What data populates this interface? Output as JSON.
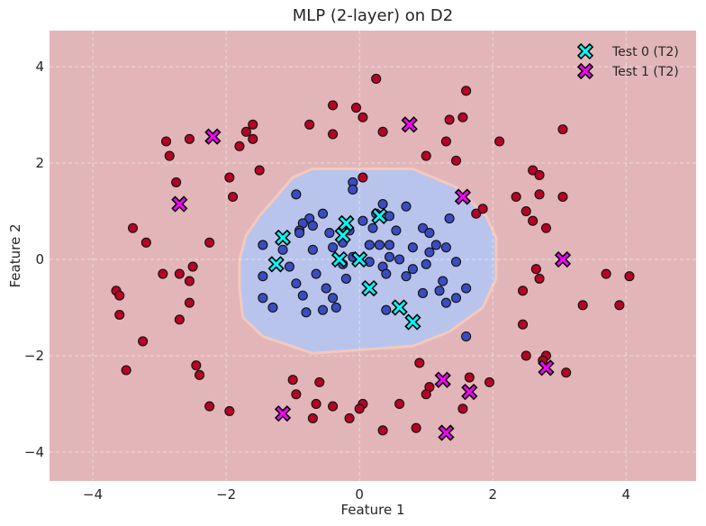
{
  "chart_data": {
    "type": "scatter",
    "title": "MLP (2-layer) on D2",
    "xlabel": "Feature 1",
    "ylabel": "Feature 2",
    "xlim": [
      -4.65,
      5.05
    ],
    "ylim": [
      -4.6,
      4.75
    ],
    "xticks": [
      -4,
      -2,
      0,
      2,
      4
    ],
    "yticks": [
      -4,
      -2,
      0,
      2,
      4
    ],
    "grid": true,
    "legend_position": "top-right",
    "colors": {
      "outer_region": "#e2b6b8",
      "inner_region": "#b8c4ec",
      "inner_boundary": "#f3c9be",
      "class0": "#3b4cc0",
      "class1": "#b40426",
      "test0": "#00ffff",
      "test1": "#ff00ff"
    },
    "decision_region_class0": [
      [
        -0.7,
        1.88
      ],
      [
        0.8,
        1.88
      ],
      [
        1.45,
        1.5
      ],
      [
        1.9,
        0.9
      ],
      [
        2.05,
        0.45
      ],
      [
        2.05,
        -0.4
      ],
      [
        1.85,
        -1.0
      ],
      [
        1.35,
        -1.5
      ],
      [
        0.8,
        -1.8
      ],
      [
        -0.7,
        -1.95
      ],
      [
        -1.45,
        -1.6
      ],
      [
        -1.75,
        -1.2
      ],
      [
        -1.8,
        -0.6
      ],
      [
        -1.8,
        0.0
      ],
      [
        -1.7,
        0.5
      ],
      [
        -1.5,
        0.9
      ],
      [
        -1.25,
        1.3
      ],
      [
        -1.0,
        1.7
      ]
    ],
    "series": [
      {
        "name": "",
        "class": 0,
        "kind": "train",
        "points": [
          [
            -0.95,
            1.35
          ],
          [
            -0.1,
            1.6
          ],
          [
            -0.1,
            1.45
          ],
          [
            0.7,
            1.1
          ],
          [
            0.25,
            0.95
          ],
          [
            0.45,
            0.9
          ],
          [
            -0.75,
            0.85
          ],
          [
            -0.85,
            0.75
          ],
          [
            -0.7,
            0.7
          ],
          [
            0.05,
            0.8
          ],
          [
            -0.45,
            0.55
          ],
          [
            -0.9,
            0.6
          ],
          [
            -0.15,
            0.6
          ],
          [
            0.55,
            0.6
          ],
          [
            0.95,
            0.65
          ],
          [
            1.35,
            0.85
          ],
          [
            1.05,
            0.55
          ],
          [
            -1.45,
            0.3
          ],
          [
            -1.15,
            0.2
          ],
          [
            -0.7,
            0.2
          ],
          [
            -0.4,
            0.25
          ],
          [
            0.15,
            0.3
          ],
          [
            0.3,
            0.3
          ],
          [
            0.45,
            0.3
          ],
          [
            0.8,
            0.25
          ],
          [
            1.15,
            0.3
          ],
          [
            1.3,
            0.25
          ],
          [
            -0.1,
            0.05
          ],
          [
            0.15,
            -0.05
          ],
          [
            0.45,
            0.05
          ],
          [
            -0.25,
            -0.1
          ],
          [
            0.35,
            -0.15
          ],
          [
            0.8,
            -0.2
          ],
          [
            1.0,
            -0.1
          ],
          [
            1.45,
            -0.05
          ],
          [
            -0.65,
            -0.3
          ],
          [
            -0.95,
            -0.5
          ],
          [
            -0.2,
            -0.4
          ],
          [
            0.4,
            -0.3
          ],
          [
            0.7,
            -0.35
          ],
          [
            1.25,
            -0.45
          ],
          [
            -1.45,
            -0.35
          ],
          [
            -0.5,
            -0.6
          ],
          [
            -1.45,
            -0.8
          ],
          [
            -0.85,
            -0.75
          ],
          [
            -0.4,
            -0.8
          ],
          [
            1.2,
            -0.65
          ],
          [
            1.6,
            -0.6
          ],
          [
            -1.3,
            -1.0
          ],
          [
            -0.55,
            -1.05
          ],
          [
            -0.35,
            -1.0
          ],
          [
            -0.8,
            -1.1
          ],
          [
            0.4,
            -1.05
          ],
          [
            1.3,
            -0.9
          ],
          [
            1.45,
            -0.8
          ],
          [
            -0.9,
            0.55
          ],
          [
            0.2,
            0.65
          ],
          [
            -0.55,
            0.95
          ],
          [
            0.35,
            1.15
          ],
          [
            1.6,
            -1.6
          ],
          [
            0.95,
            -0.7
          ],
          [
            -0.25,
            0.35
          ],
          [
            0.6,
            0.0
          ],
          [
            1.05,
            0.15
          ],
          [
            -1.05,
            -0.15
          ]
        ]
      },
      {
        "name": "",
        "class": 1,
        "kind": "train",
        "points": [
          [
            0.25,
            3.75
          ],
          [
            -0.4,
            3.2
          ],
          [
            -0.05,
            3.15
          ],
          [
            0.05,
            2.95
          ],
          [
            1.6,
            3.5
          ],
          [
            1.55,
            2.95
          ],
          [
            1.35,
            2.9
          ],
          [
            -0.75,
            2.8
          ],
          [
            -1.6,
            2.8
          ],
          [
            -1.7,
            2.65
          ],
          [
            -1.6,
            2.5
          ],
          [
            -1.8,
            2.35
          ],
          [
            -2.55,
            2.5
          ],
          [
            -2.9,
            2.45
          ],
          [
            -2.85,
            2.15
          ],
          [
            -0.4,
            2.6
          ],
          [
            0.35,
            2.65
          ],
          [
            1.3,
            2.45
          ],
          [
            1.0,
            2.15
          ],
          [
            2.1,
            2.45
          ],
          [
            1.45,
            2.05
          ],
          [
            3.05,
            2.7
          ],
          [
            2.6,
            1.85
          ],
          [
            2.7,
            1.75
          ],
          [
            0.05,
            1.7
          ],
          [
            -1.5,
            1.85
          ],
          [
            -1.95,
            1.7
          ],
          [
            -2.75,
            1.6
          ],
          [
            -1.9,
            1.3
          ],
          [
            2.35,
            1.3
          ],
          [
            2.7,
            1.35
          ],
          [
            3.05,
            1.3
          ],
          [
            1.75,
            0.95
          ],
          [
            1.85,
            1.05
          ],
          [
            2.5,
            1.0
          ],
          [
            2.6,
            0.8
          ],
          [
            2.8,
            0.65
          ],
          [
            -3.4,
            0.65
          ],
          [
            -3.2,
            0.35
          ],
          [
            -2.25,
            0.35
          ],
          [
            -2.5,
            -0.15
          ],
          [
            -2.95,
            -0.3
          ],
          [
            -2.7,
            -0.3
          ],
          [
            -2.55,
            -0.45
          ],
          [
            2.65,
            -0.2
          ],
          [
            2.7,
            -0.4
          ],
          [
            2.45,
            -0.65
          ],
          [
            -3.65,
            -0.65
          ],
          [
            -3.6,
            -0.75
          ],
          [
            -2.55,
            -0.9
          ],
          [
            3.35,
            -0.95
          ],
          [
            3.7,
            -0.3
          ],
          [
            4.05,
            -0.35
          ],
          [
            3.9,
            -0.95
          ],
          [
            -3.6,
            -1.15
          ],
          [
            -2.7,
            -1.25
          ],
          [
            2.45,
            -1.35
          ],
          [
            -3.25,
            -1.7
          ],
          [
            2.5,
            -2.0
          ],
          [
            2.8,
            -2.0
          ],
          [
            2.75,
            -2.1
          ],
          [
            3.1,
            -2.35
          ],
          [
            -3.5,
            -2.3
          ],
          [
            -2.45,
            -2.2
          ],
          [
            -2.4,
            -2.4
          ],
          [
            0.9,
            -2.15
          ],
          [
            -1.0,
            -2.5
          ],
          [
            -0.6,
            -2.55
          ],
          [
            1.65,
            -2.45
          ],
          [
            1.05,
            -2.65
          ],
          [
            1.0,
            -2.8
          ],
          [
            1.95,
            -2.55
          ],
          [
            -0.95,
            -2.8
          ],
          [
            -0.65,
            -3.0
          ],
          [
            -0.4,
            -3.05
          ],
          [
            0.05,
            -3.0
          ],
          [
            0.0,
            -3.1
          ],
          [
            0.6,
            -3.0
          ],
          [
            1.55,
            -3.1
          ],
          [
            -2.25,
            -3.05
          ],
          [
            -1.95,
            -3.15
          ],
          [
            -0.7,
            -3.3
          ],
          [
            -0.15,
            -3.3
          ],
          [
            0.85,
            -3.5
          ],
          [
            0.35,
            -3.55
          ]
        ]
      },
      {
        "name": "Test 0 (T2)",
        "class": 0,
        "kind": "test",
        "points": [
          [
            -1.15,
            0.45
          ],
          [
            -0.2,
            0.75
          ],
          [
            0.3,
            0.9
          ],
          [
            -0.25,
            0.5
          ],
          [
            -1.25,
            -0.1
          ],
          [
            -0.3,
            0.0
          ],
          [
            0.0,
            0.0
          ],
          [
            0.15,
            -0.6
          ],
          [
            0.6,
            -1.0
          ],
          [
            0.8,
            -1.3
          ]
        ]
      },
      {
        "name": "Test 1 (T2)",
        "class": 1,
        "kind": "test",
        "points": [
          [
            -2.2,
            2.55
          ],
          [
            0.75,
            2.8
          ],
          [
            -2.7,
            1.15
          ],
          [
            1.55,
            1.3
          ],
          [
            3.05,
            0.0
          ],
          [
            2.8,
            -2.25
          ],
          [
            1.25,
            -2.5
          ],
          [
            1.65,
            -2.75
          ],
          [
            -1.15,
            -3.2
          ],
          [
            1.3,
            -3.6
          ]
        ]
      }
    ]
  }
}
